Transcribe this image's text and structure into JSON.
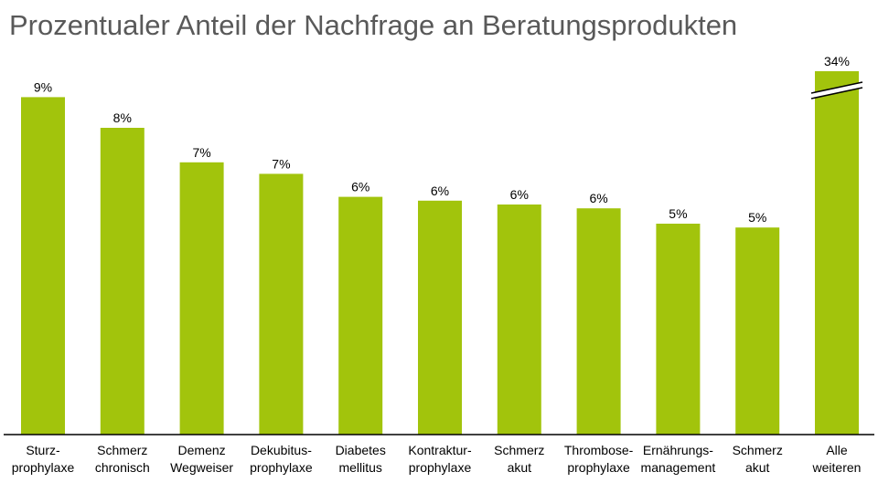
{
  "chart_data": {
    "type": "bar",
    "title": "Prozentualer Anteil der Nachfrage an Beratungsprodukten",
    "xlabel": "",
    "ylabel": "",
    "categories": [
      [
        "Sturz-",
        "prophylaxe"
      ],
      [
        "Schmerz",
        "chronisch"
      ],
      [
        "Demenz",
        "Wegweiser"
      ],
      [
        "Dekubitus-",
        "prophylaxe"
      ],
      [
        "Diabetes",
        "mellitus"
      ],
      [
        "Kontraktur-",
        "prophylaxe"
      ],
      [
        "Schmerz",
        "akut"
      ],
      [
        "Thrombose-",
        "prophylaxe"
      ],
      [
        "Ernährungs-",
        "management"
      ],
      [
        "Schmerz",
        "akut"
      ],
      [
        "Alle",
        "weiteren"
      ]
    ],
    "values": [
      8.8,
      8.0,
      7.1,
      6.8,
      6.2,
      6.1,
      6.0,
      5.9,
      5.5,
      5.4,
      34
    ],
    "data_labels": [
      "9%",
      "8%",
      "7%",
      "7%",
      "6%",
      "6%",
      "6%",
      "6%",
      "5%",
      "5%",
      "34%"
    ],
    "broken_axis_bars": [
      10
    ],
    "ylim": [
      0,
      9.5
    ],
    "grid": false,
    "legend": "none",
    "colors": {
      "bar": "#a2c40c",
      "axis": "#000000",
      "title": "#595959"
    }
  }
}
